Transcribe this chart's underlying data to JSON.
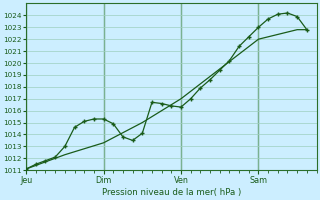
{
  "title": "Pression niveau de la mer( hPa )",
  "bg_color": "#cceeff",
  "grid_color": "#9ecfbf",
  "line_color": "#1a5c1a",
  "marker_color": "#1a5c1a",
  "ylim": [
    1011,
    1025
  ],
  "yticks": [
    1011,
    1012,
    1013,
    1014,
    1015,
    1016,
    1017,
    1018,
    1019,
    1020,
    1021,
    1022,
    1023,
    1024
  ],
  "xlim": [
    0,
    180
  ],
  "line1_x": [
    0,
    6,
    12,
    18,
    24,
    30,
    36,
    42,
    48,
    54,
    60,
    66,
    72,
    78,
    84,
    90,
    96,
    102,
    108,
    114,
    120,
    126,
    132,
    138,
    144,
    150,
    156,
    162,
    168,
    174
  ],
  "line1_y": [
    1011.1,
    1011.5,
    1011.8,
    1012.1,
    1013.0,
    1014.6,
    1015.1,
    1015.3,
    1015.3,
    1014.9,
    1013.8,
    1013.5,
    1014.1,
    1016.7,
    1016.6,
    1016.4,
    1016.3,
    1017.0,
    1017.9,
    1018.6,
    1019.4,
    1020.2,
    1021.4,
    1022.2,
    1023.0,
    1023.7,
    1024.1,
    1024.2,
    1023.9,
    1022.8
  ],
  "line2_x": [
    0,
    24,
    48,
    72,
    96,
    120,
    144,
    168,
    174
  ],
  "line2_y": [
    1011.1,
    1012.3,
    1013.3,
    1015.0,
    1017.0,
    1019.5,
    1022.0,
    1022.8,
    1022.8
  ],
  "vline_positions": [
    0,
    48,
    96,
    144
  ],
  "xtick_positions": [
    0,
    48,
    96,
    144
  ],
  "xtick_labels": [
    "Jeu",
    "Dim",
    "Ven",
    "Sam"
  ],
  "ytick_fontsize": 5.2,
  "xtick_fontsize": 5.8,
  "title_fontsize": 6.2
}
